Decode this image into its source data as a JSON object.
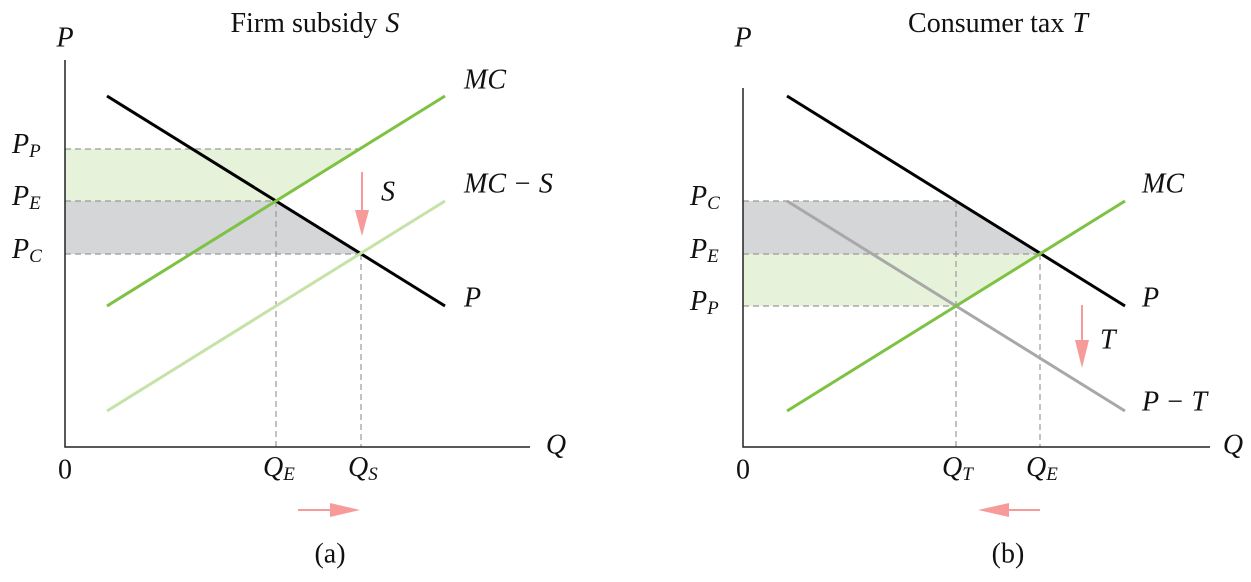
{
  "panels": [
    {
      "title": {
        "text": "Firm subsidy",
        "var": "S"
      },
      "axis_labels": {
        "y": "P",
        "x": "Q",
        "origin": "0"
      },
      "price_labels": [
        {
          "main": "P",
          "sub": "P"
        },
        {
          "main": "P",
          "sub": "E"
        },
        {
          "main": "P",
          "sub": "C"
        }
      ],
      "quantity_labels": [
        {
          "main": "Q",
          "sub": "E"
        },
        {
          "main": "Q",
          "sub": "S"
        }
      ],
      "curve_labels": [
        "MC",
        "MC − S",
        "P"
      ],
      "shift_label": "S",
      "caption": "(a)"
    },
    {
      "title": {
        "text": "Consumer tax",
        "var": "T"
      },
      "axis_labels": {
        "y": "P",
        "x": "Q",
        "origin": "0"
      },
      "price_labels": [
        {
          "main": "P",
          "sub": "C"
        },
        {
          "main": "P",
          "sub": "E"
        },
        {
          "main": "P",
          "sub": "P"
        }
      ],
      "quantity_labels": [
        {
          "main": "Q",
          "sub": "T"
        },
        {
          "main": "Q",
          "sub": "E"
        }
      ],
      "curve_labels": [
        "MC",
        "P",
        "P − T"
      ],
      "shift_label": "T",
      "caption": "(b)"
    }
  ]
}
